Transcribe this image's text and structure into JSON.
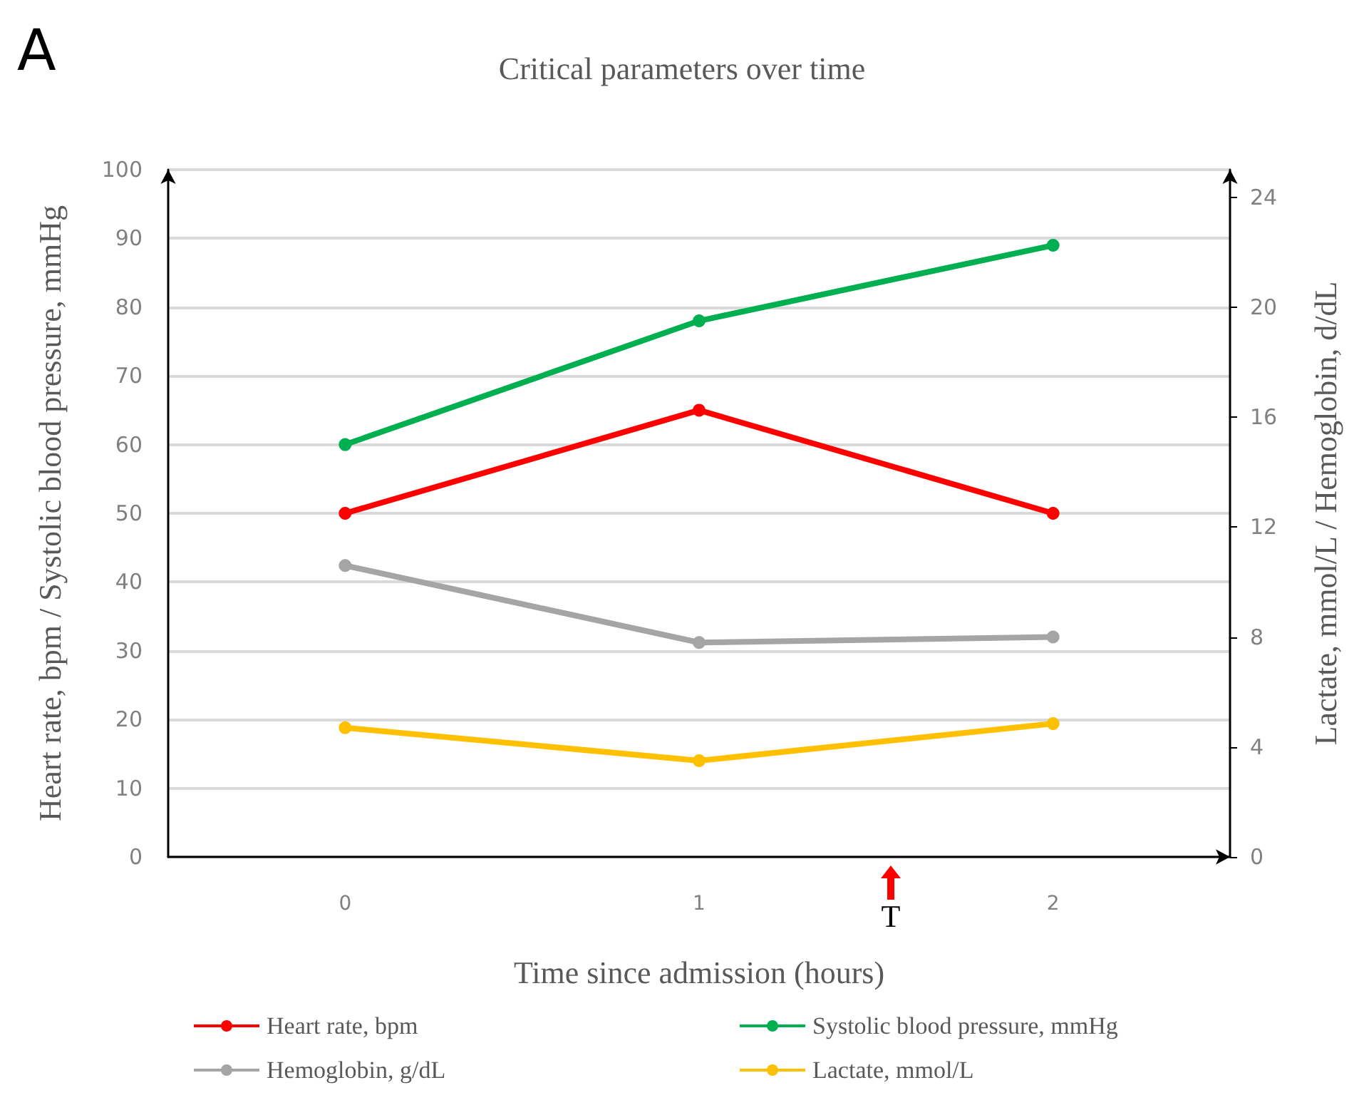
{
  "chart_data": {
    "type": "line",
    "title": "Critical parameters over time",
    "xlabel": "Time since admission (hours)",
    "ylabel": "Heart rate, bpm / Systolic blood pressure, mmHg",
    "y2label": "Lactate, mmol/L / Hemoglobin, d/dL",
    "x": [
      0,
      1,
      2
    ],
    "xlim": [
      -0.5,
      2.5
    ],
    "xticks": [
      0,
      1,
      2
    ],
    "ylim": [
      0,
      100
    ],
    "yticks": [
      0,
      10,
      20,
      30,
      40,
      50,
      60,
      70,
      80,
      90,
      100
    ],
    "y2lim": [
      0,
      25
    ],
    "y2ticks": [
      0,
      4,
      8,
      12,
      16,
      20,
      24
    ],
    "series": [
      {
        "name": "Heart rate, bpm",
        "color": "#ff0000",
        "values": [
          50,
          65,
          50
        ]
      },
      {
        "name": "Systolic blood pressure, mmHg",
        "color": "#00b050",
        "values": [
          60,
          78,
          89
        ]
      },
      {
        "name": "Hemoglobin, g/dL",
        "color": "#a5a5a5",
        "axis": "y2",
        "values": [
          10.6,
          7.8,
          8.0
        ]
      },
      {
        "name": "Lactate, mmol/L",
        "color": "#ffc000",
        "axis": "y2",
        "values": [
          4.7,
          3.5,
          4.85
        ]
      }
    ],
    "annotations": [
      "A",
      "T"
    ],
    "grid": "y",
    "legend": "bottom",
    "marker": "circle"
  }
}
